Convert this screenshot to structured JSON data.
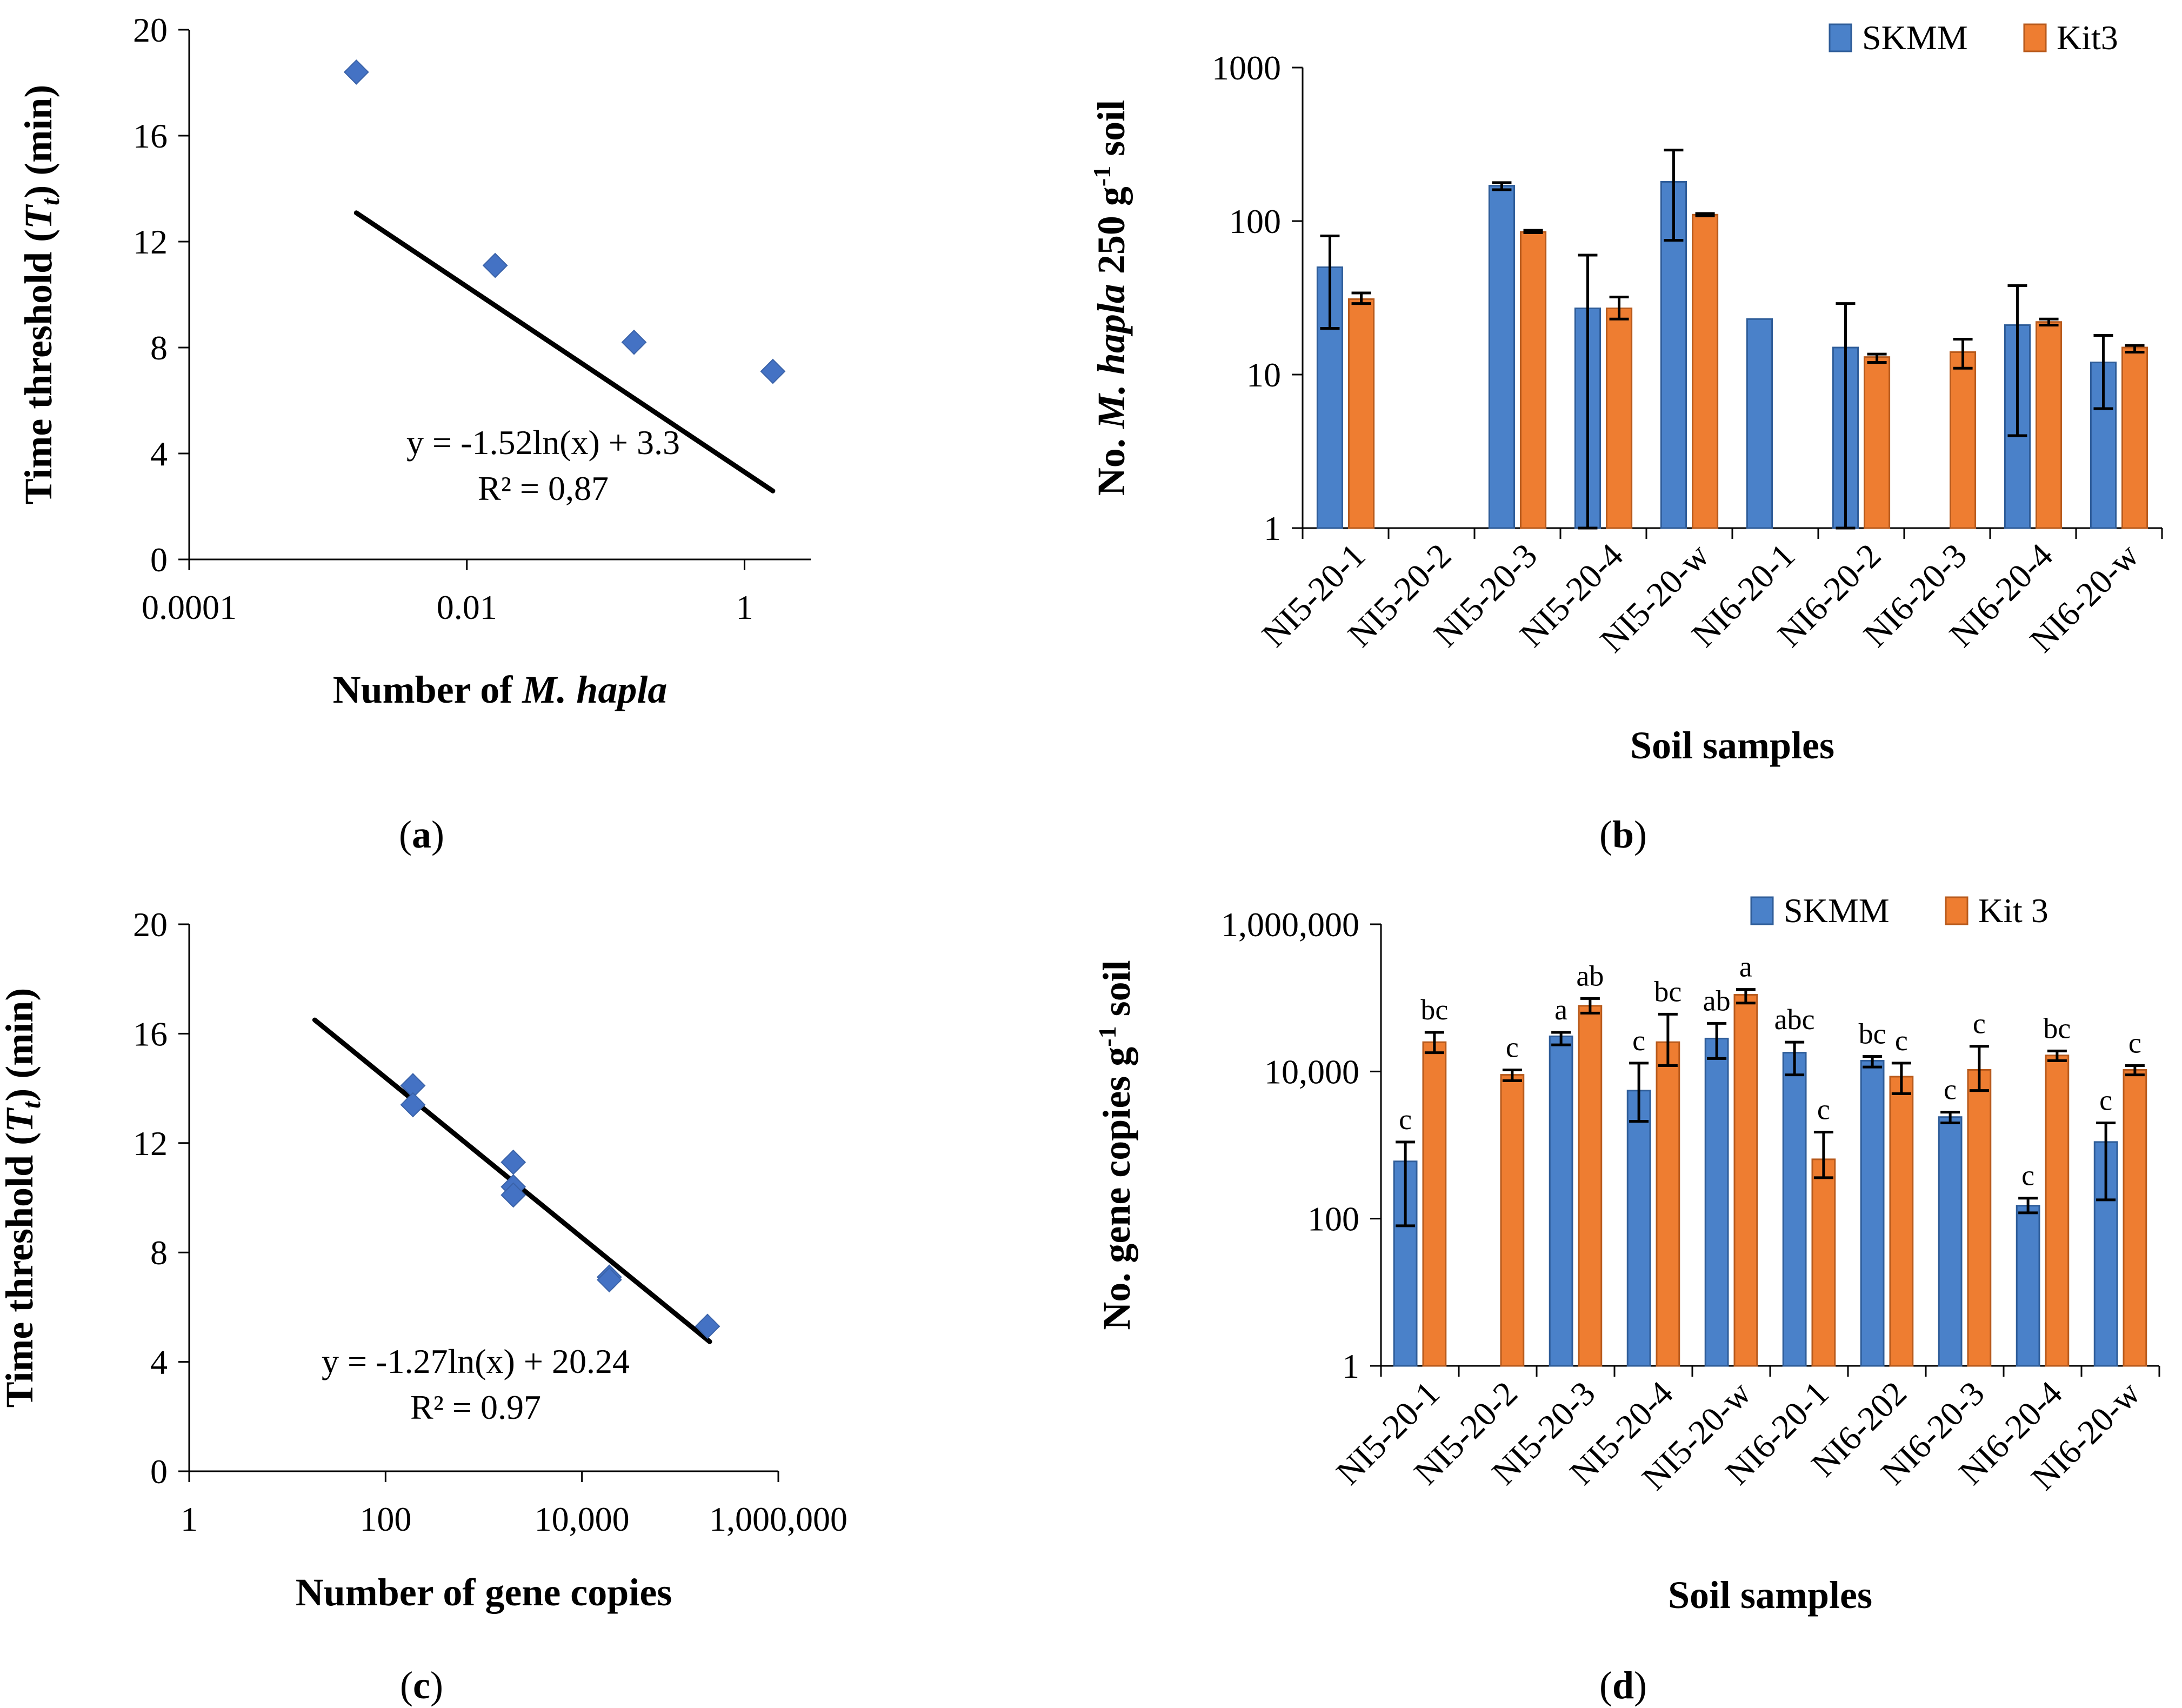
{
  "colors": {
    "skmm": "#4A81C9",
    "kit3": "#EE7D31",
    "marker": "#4472C4",
    "axis": "#000000"
  },
  "panels": {
    "a": {
      "caption_open": "(",
      "caption_letter": "a",
      "caption_close": ")"
    },
    "b": {
      "caption_open": "(",
      "caption_letter": "b",
      "caption_close": ")"
    },
    "c": {
      "caption_open": "(",
      "caption_letter": "c",
      "caption_close": ")"
    },
    "d": {
      "caption_open": "(",
      "caption_letter": "d",
      "caption_close": ")"
    }
  },
  "chart_data": [
    {
      "id": "a",
      "type": "scatter",
      "xscale": "log",
      "xlim": [
        0.0001,
        3
      ],
      "ylim": [
        0,
        20
      ],
      "xticks": [
        0.0001,
        0.01,
        1
      ],
      "xtick_labels": [
        "0.0001",
        "0.01",
        "1"
      ],
      "yticks": [
        0,
        4,
        8,
        12,
        16,
        20
      ],
      "ylabel_prefix": "Time threshold (",
      "ylabel_italic": "T",
      "ylabel_sub": "t",
      "ylabel_suffix": ")  (min)",
      "xlabel_prefix": "Number of ",
      "xlabel_italic": "M. hapla",
      "x": [
        0.0016,
        0.016,
        0.16,
        1.6
      ],
      "y": [
        18.4,
        11.1,
        8.2,
        7.1
      ],
      "trendline": {
        "a": -1.52,
        "b": 3.3,
        "x_from": 0.0016,
        "x_to": 1.6
      },
      "equation": "y = -1.52ln(x) + 3.3",
      "r2": "R² = 0,87"
    },
    {
      "id": "b",
      "type": "bar",
      "yscale": "log",
      "ylim": [
        1,
        1000
      ],
      "yticks": [
        1,
        10,
        100,
        1000
      ],
      "ytick_labels": [
        "1",
        "10",
        "100",
        "1000"
      ],
      "ylabel_prefix": "No. ",
      "ylabel_italic": "M. hapla",
      "ylabel_mid": " 250 g",
      "ylabel_sup": "-1",
      "ylabel_suffix": " soil",
      "xlabel": "Soil samples",
      "categories": [
        "NI5-20-1",
        "NI5-20-2",
        "NI5-20-3",
        "NI5-20-4",
        "NI5-20-w",
        "NI6-20-1",
        "NI6-20-2",
        "NI6-20-3",
        "NI6-20-4",
        "NI6-20-w"
      ],
      "series": [
        {
          "name": "SKMM",
          "values": [
            50,
            null,
            170,
            27,
            180,
            23,
            15,
            null,
            21,
            12
          ],
          "err_low": [
            20,
            null,
            160,
            1,
            75,
            23,
            1,
            null,
            4,
            6
          ],
          "err_high": [
            80,
            null,
            178,
            60,
            290,
            23,
            29,
            null,
            38,
            18
          ]
        },
        {
          "name": "Kit3",
          "values": [
            31,
            null,
            85,
            27,
            110,
            null,
            13,
            14,
            22,
            15
          ],
          "err_low": [
            29,
            null,
            84,
            23,
            108,
            null,
            12,
            11,
            21,
            14
          ],
          "err_high": [
            34,
            null,
            87,
            32,
            112,
            null,
            13.6,
            17,
            23,
            15.5
          ]
        }
      ]
    },
    {
      "id": "c",
      "type": "scatter",
      "xscale": "log",
      "xlim": [
        1,
        1000000
      ],
      "ylim": [
        0,
        20
      ],
      "xticks": [
        1,
        100,
        10000,
        1000000
      ],
      "xtick_labels": [
        "1",
        "100",
        "10,000",
        "1,000,000"
      ],
      "yticks": [
        0,
        4,
        8,
        12,
        16,
        20
      ],
      "ylabel_prefix": "Time threshold (",
      "ylabel_italic": "T",
      "ylabel_sub": "t",
      "ylabel_suffix": ") (min)",
      "xlabel": "Number of gene copies",
      "x": [
        190,
        190,
        2000,
        2000,
        2000,
        19000,
        19000,
        190000
      ],
      "y": [
        14.1,
        13.4,
        11.3,
        10.4,
        10.1,
        7.1,
        7.0,
        5.3
      ],
      "trendline": {
        "a": -1.27,
        "b": 20.24,
        "x_from": 19,
        "x_to": 200000
      },
      "equation": "y = -1.27ln(x) + 20.24",
      "r2": "R² = 0.97"
    },
    {
      "id": "d",
      "type": "bar",
      "yscale": "log",
      "ylim": [
        1,
        1000000
      ],
      "yticks": [
        1,
        100,
        10000,
        1000000
      ],
      "ytick_labels": [
        "1",
        "100",
        "10,000",
        "1,000,000"
      ],
      "ylabel_prefix": "No. gene copies g",
      "ylabel_sup": "-1",
      "ylabel_suffix": " soil",
      "xlabel": "Soil samples",
      "categories": [
        "NI5-20-1",
        "NI5-20-2",
        "NI5-20-3",
        "NI5-20-4",
        "NI5-20-w",
        "NI6-20-1",
        "NI6-202",
        "NI6-20-3",
        "NI6-20-4",
        "NI6-20-w"
      ],
      "series": [
        {
          "name": "SKMM",
          "values": [
            600,
            null,
            30000,
            5500,
            28000,
            18000,
            14000,
            2400,
            150,
            1100
          ],
          "err_low": [
            80,
            null,
            23000,
            2100,
            15000,
            9000,
            11500,
            2000,
            120,
            180
          ],
          "err_high": [
            1100,
            null,
            34000,
            13000,
            45000,
            25000,
            16000,
            2800,
            190,
            2000
          ],
          "letters": [
            "c",
            "",
            "a",
            "c",
            "ab",
            "abc",
            "bc",
            "c",
            "c",
            "c"
          ]
        },
        {
          "name": "Kit 3",
          "values": [
            25000,
            9000,
            78000,
            25000,
            110000,
            640,
            8500,
            10500,
            16500,
            10500
          ],
          "err_low": [
            18000,
            7500,
            62000,
            12000,
            85000,
            360,
            5000,
            5500,
            14000,
            9000
          ],
          "err_high": [
            34000,
            10500,
            98000,
            60000,
            130000,
            1500,
            13000,
            22000,
            19000,
            12000
          ],
          "letters": [
            "bc",
            "c",
            "ab",
            "bc",
            "a",
            "c",
            "c",
            "c",
            "bc",
            "c"
          ]
        }
      ]
    }
  ]
}
